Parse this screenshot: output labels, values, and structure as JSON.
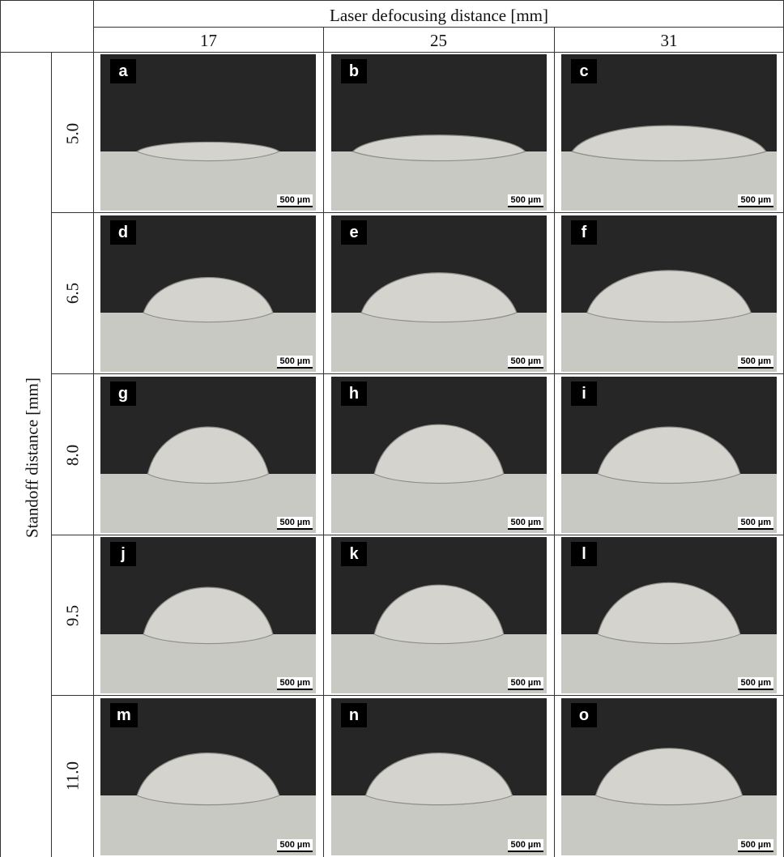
{
  "header": {
    "column_group_title": "Laser defocusing distance [mm]",
    "columns": [
      "17",
      "25",
      "31"
    ]
  },
  "y_axis_title": "Standoff distance [mm]",
  "rows": [
    "5.0",
    "6.5",
    "8.0",
    "9.5",
    "11.0"
  ],
  "panel_labels": [
    "a",
    "b",
    "c",
    "d",
    "e",
    "f",
    "g",
    "h",
    "i",
    "j",
    "k",
    "l",
    "m",
    "n",
    "o"
  ],
  "scale_bar": "500 µm"
}
